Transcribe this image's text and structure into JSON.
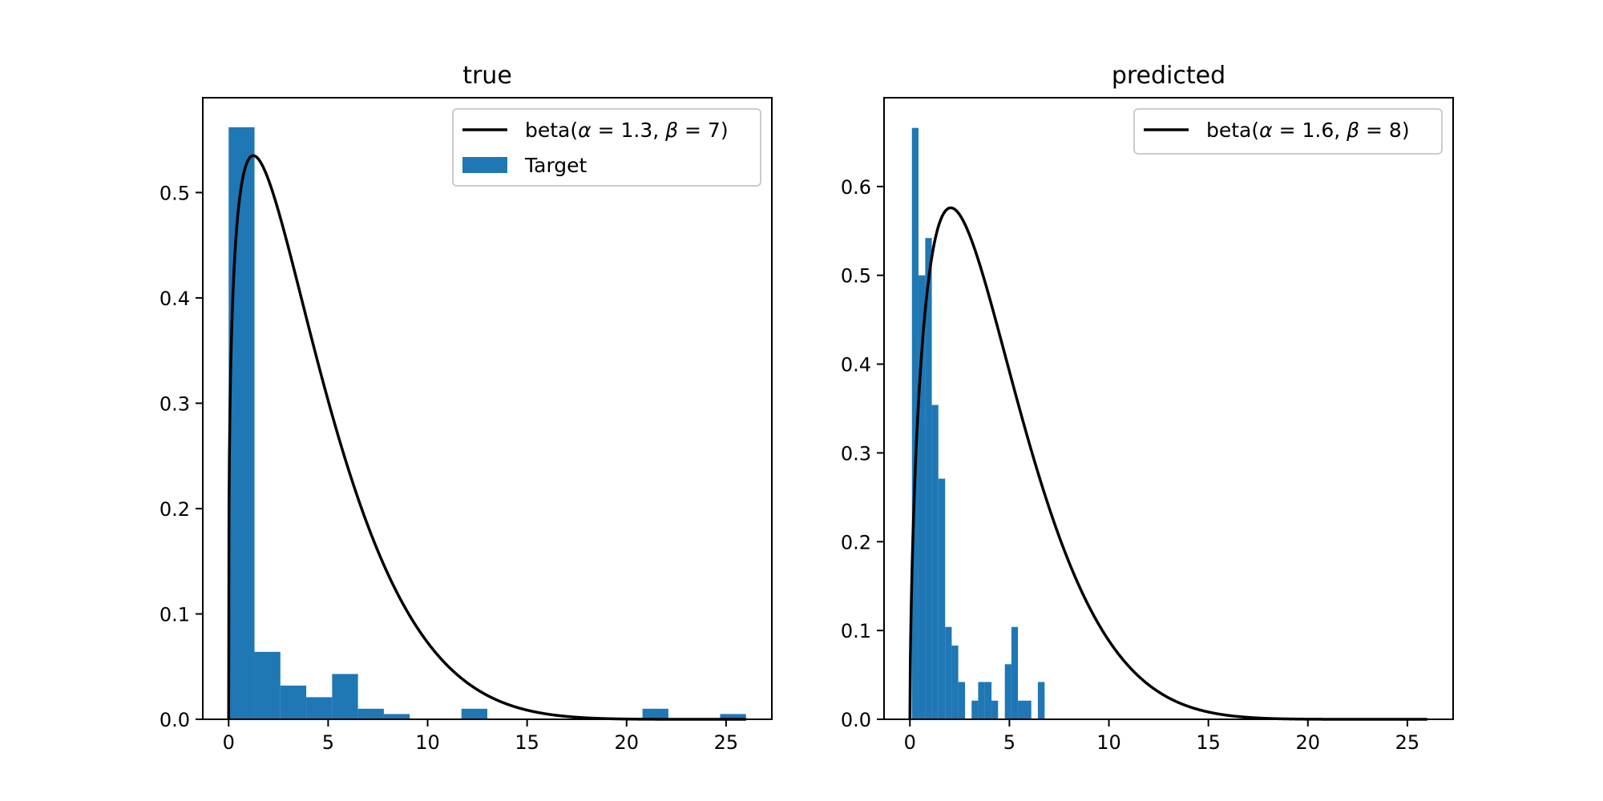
{
  "figure": {
    "background": "#ffffff"
  },
  "chart_data": [
    {
      "type": "bar",
      "title": "true",
      "xlabel": "",
      "ylabel": "",
      "xlim": [
        -1.3,
        27.3
      ],
      "ylim": [
        0,
        0.59
      ],
      "xticks": [
        0,
        5,
        10,
        15,
        20,
        25
      ],
      "yticks": [
        0.0,
        0.1,
        0.2,
        0.3,
        0.4,
        0.5
      ],
      "grid": false,
      "legend_position": "top-right",
      "bar_color": "#1f77b4",
      "line_color": "#000000",
      "histogram": {
        "name": "Target",
        "bin_edges": [
          0,
          1.3,
          2.6,
          3.9,
          5.2,
          6.5,
          7.8,
          9.1,
          10.4,
          11.7,
          13.0,
          14.3,
          15.6,
          16.9,
          18.2,
          19.5,
          20.8,
          22.1,
          23.4,
          24.7,
          26.0
        ],
        "values": [
          0.562,
          0.064,
          0.032,
          0.021,
          0.043,
          0.01,
          0.005,
          0,
          0,
          0.01,
          0,
          0,
          0,
          0,
          0,
          0,
          0.01,
          0,
          0,
          0.005
        ]
      },
      "curve": {
        "name": "beta(α = 1.3, β = 7)",
        "label_parts": [
          "beta(",
          "α",
          " = 1.3, ",
          "β",
          " = 7)"
        ],
        "alpha": 1.3,
        "beta": 7,
        "x_range": [
          0,
          26
        ],
        "peak_value": 0.535
      }
    },
    {
      "type": "bar",
      "title": "predicted",
      "xlabel": "",
      "ylabel": "",
      "xlim": [
        -1.3,
        27.3
      ],
      "ylim": [
        0,
        0.7
      ],
      "xticks": [
        0,
        5,
        10,
        15,
        20,
        25
      ],
      "yticks": [
        0.0,
        0.1,
        0.2,
        0.3,
        0.4,
        0.5,
        0.6
      ],
      "grid": false,
      "legend_position": "top-right",
      "bar_color": "#1f77b4",
      "line_color": "#000000",
      "histogram": {
        "bin_edges": [
          0.1,
          0.43,
          0.77,
          1.1,
          1.43,
          1.77,
          2.1,
          2.43,
          2.77,
          3.1,
          3.43,
          3.77,
          4.1,
          4.43,
          4.77,
          5.1,
          5.43,
          5.77,
          6.1,
          6.43,
          6.77,
          7.1
        ],
        "values": [
          0.666,
          0.5,
          0.542,
          0.354,
          0.271,
          0.104,
          0.083,
          0.042,
          0,
          0.021,
          0.042,
          0.042,
          0.021,
          0,
          0.062,
          0.104,
          0.021,
          0.021,
          0,
          0.042,
          0
        ]
      },
      "curve": {
        "name": "beta(α = 1.6, β = 8)",
        "label_parts": [
          "beta(",
          "α",
          " = 1.6, ",
          "β",
          " = 8)"
        ],
        "alpha": 1.6,
        "beta": 8,
        "x_range": [
          0,
          26
        ],
        "peak_value": 0.576
      }
    }
  ]
}
